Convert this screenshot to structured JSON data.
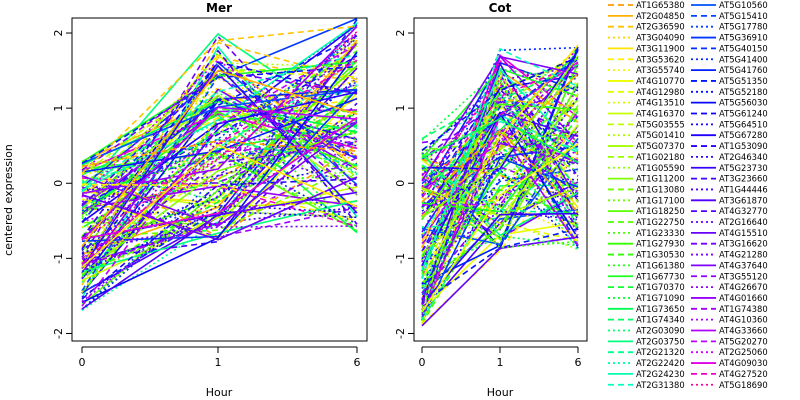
{
  "chart_data": [
    {
      "type": "line",
      "title": "Mer",
      "xlabel": "Hour",
      "ylabel": "centered expression",
      "x": [
        "0",
        "1",
        "6"
      ],
      "ylim": [
        -2.1,
        2.2
      ],
      "yticks": [
        -2,
        -1,
        0,
        1,
        2
      ],
      "grid": false,
      "legend": "right (outside)"
    },
    {
      "type": "line",
      "title": "Cot",
      "xlabel": "Hour",
      "ylabel": "",
      "x": [
        "0",
        "1",
        "6"
      ],
      "ylim": [
        -2.1,
        2.2
      ],
      "yticks": [
        -2,
        -1,
        0,
        1,
        2
      ],
      "grid": false,
      "legend": "right (outside)"
    }
  ],
  "legend": {
    "column1": [
      {
        "name": "AT1G65380",
        "color": "#ff9a00",
        "dash": "dashed"
      },
      {
        "name": "AT2G04850",
        "color": "#ffb000",
        "dash": "solid"
      },
      {
        "name": "AT2G36590",
        "color": "#ffc400",
        "dash": "dashed"
      },
      {
        "name": "AT3G04090",
        "color": "#ffd700",
        "dash": "dotted"
      },
      {
        "name": "AT3G11900",
        "color": "#ffe500",
        "dash": "solid"
      },
      {
        "name": "AT3G53620",
        "color": "#fff000",
        "dash": "dashed"
      },
      {
        "name": "AT3G55740",
        "color": "#f5f500",
        "dash": "dotted"
      },
      {
        "name": "AT4G10770",
        "color": "#ebff00",
        "dash": "solid"
      },
      {
        "name": "AT4G12980",
        "color": "#e0ff00",
        "dash": "dashed"
      },
      {
        "name": "AT4G13510",
        "color": "#d4ff00",
        "dash": "dotted"
      },
      {
        "name": "AT4G16370",
        "color": "#c8ff00",
        "dash": "solid"
      },
      {
        "name": "AT5G03555",
        "color": "#bcff00",
        "dash": "dashed"
      },
      {
        "name": "AT5G01410",
        "color": "#b0ff00",
        "dash": "dotted"
      },
      {
        "name": "AT5G07370",
        "color": "#a4ff00",
        "dash": "solid"
      },
      {
        "name": "AT1G02180",
        "color": "#98ff00",
        "dash": "dashed"
      },
      {
        "name": "AT1G05590",
        "color": "#8cff00",
        "dash": "dotted"
      },
      {
        "name": "AT1G11200",
        "color": "#80ff00",
        "dash": "solid"
      },
      {
        "name": "AT1G13080",
        "color": "#74ff00",
        "dash": "dashed"
      },
      {
        "name": "AT1G17100",
        "color": "#68ff00",
        "dash": "dotted"
      },
      {
        "name": "AT1G18250",
        "color": "#5cff00",
        "dash": "solid"
      },
      {
        "name": "AT1G22750",
        "color": "#50ff00",
        "dash": "dashed"
      },
      {
        "name": "AT1G23330",
        "color": "#44ff00",
        "dash": "dotted"
      },
      {
        "name": "AT1G27930",
        "color": "#38ff00",
        "dash": "solid"
      },
      {
        "name": "AT1G30530",
        "color": "#2cff00",
        "dash": "dashed"
      },
      {
        "name": "AT1G61380",
        "color": "#20ff10",
        "dash": "dotted"
      },
      {
        "name": "AT1G67730",
        "color": "#18ff20",
        "dash": "solid"
      },
      {
        "name": "AT1G70370",
        "color": "#10ff30",
        "dash": "dashed"
      },
      {
        "name": "AT1G71090",
        "color": "#08ff40",
        "dash": "dotted"
      },
      {
        "name": "AT1G73650",
        "color": "#00ff50",
        "dash": "solid"
      },
      {
        "name": "AT1G74340",
        "color": "#00ff60",
        "dash": "dashed"
      },
      {
        "name": "AT2G03090",
        "color": "#00ff70",
        "dash": "dotted"
      },
      {
        "name": "AT2G03750",
        "color": "#00ff80",
        "dash": "solid"
      },
      {
        "name": "AT2G21320",
        "color": "#00ff90",
        "dash": "dashed"
      },
      {
        "name": "AT2G22420",
        "color": "#00ffa0",
        "dash": "dotted"
      },
      {
        "name": "AT2G24230",
        "color": "#00ffb0",
        "dash": "solid"
      },
      {
        "name": "AT2G31380",
        "color": "#00ffc0",
        "dash": "dashed"
      }
    ],
    "column2": [
      {
        "name": "AT5G10560",
        "color": "#0050ff",
        "dash": "solid"
      },
      {
        "name": "AT5G15410",
        "color": "#0048ff",
        "dash": "dashed"
      },
      {
        "name": "AT5G17780",
        "color": "#0040ff",
        "dash": "dotted"
      },
      {
        "name": "AT5G36910",
        "color": "#0038ff",
        "dash": "solid"
      },
      {
        "name": "AT5G40150",
        "color": "#0030ff",
        "dash": "dashed"
      },
      {
        "name": "AT5G41400",
        "color": "#0028ff",
        "dash": "dotted"
      },
      {
        "name": "AT5G41760",
        "color": "#0020ff",
        "dash": "solid"
      },
      {
        "name": "AT5G51350",
        "color": "#0018ff",
        "dash": "dashed"
      },
      {
        "name": "AT5G52180",
        "color": "#0010ff",
        "dash": "dotted"
      },
      {
        "name": "AT5G56030",
        "color": "#0808ff",
        "dash": "solid"
      },
      {
        "name": "AT5G61240",
        "color": "#1000ff",
        "dash": "dashed"
      },
      {
        "name": "AT5G64510",
        "color": "#1800ff",
        "dash": "dotted"
      },
      {
        "name": "AT5G67280",
        "color": "#2000ff",
        "dash": "solid"
      },
      {
        "name": "AT1G53090",
        "color": "#2800ff",
        "dash": "dashed"
      },
      {
        "name": "AT2G46340",
        "color": "#3000ff",
        "dash": "dotted"
      },
      {
        "name": "AT5G23730",
        "color": "#3800ff",
        "dash": "solid"
      },
      {
        "name": "AT3G23660",
        "color": "#4000ff",
        "dash": "dashed"
      },
      {
        "name": "AT1G44446",
        "color": "#4800ff",
        "dash": "dotted"
      },
      {
        "name": "AT3G61870",
        "color": "#5000ff",
        "dash": "solid"
      },
      {
        "name": "AT4G32770",
        "color": "#5800ff",
        "dash": "dashed"
      },
      {
        "name": "AT2G16640",
        "color": "#6000ff",
        "dash": "dotted"
      },
      {
        "name": "AT4G15510",
        "color": "#6800ff",
        "dash": "solid"
      },
      {
        "name": "AT3G16620",
        "color": "#7000ff",
        "dash": "dashed"
      },
      {
        "name": "AT4G21280",
        "color": "#7800ff",
        "dash": "dotted"
      },
      {
        "name": "AT4G37640",
        "color": "#8000ff",
        "dash": "solid"
      },
      {
        "name": "AT3G55120",
        "color": "#8800ff",
        "dash": "dashed"
      },
      {
        "name": "AT4G26670",
        "color": "#9000ff",
        "dash": "dotted"
      },
      {
        "name": "AT4G01660",
        "color": "#9800ff",
        "dash": "solid"
      },
      {
        "name": "AT1G74380",
        "color": "#a000ff",
        "dash": "dashed"
      },
      {
        "name": "AT4G10360",
        "color": "#a800ff",
        "dash": "dotted"
      },
      {
        "name": "AT4G33660",
        "color": "#b000ff",
        "dash": "solid"
      },
      {
        "name": "AT5G20270",
        "color": "#c000ff",
        "dash": "dashed"
      },
      {
        "name": "AT2G25060",
        "color": "#d000ff",
        "dash": "dotted"
      },
      {
        "name": "AT4G09030",
        "color": "#e000e0",
        "dash": "solid"
      },
      {
        "name": "AT4G27520",
        "color": "#f000c0",
        "dash": "dashed"
      },
      {
        "name": "AT5G18690",
        "color": "#ff00a0",
        "dash": "dotted"
      }
    ]
  }
}
